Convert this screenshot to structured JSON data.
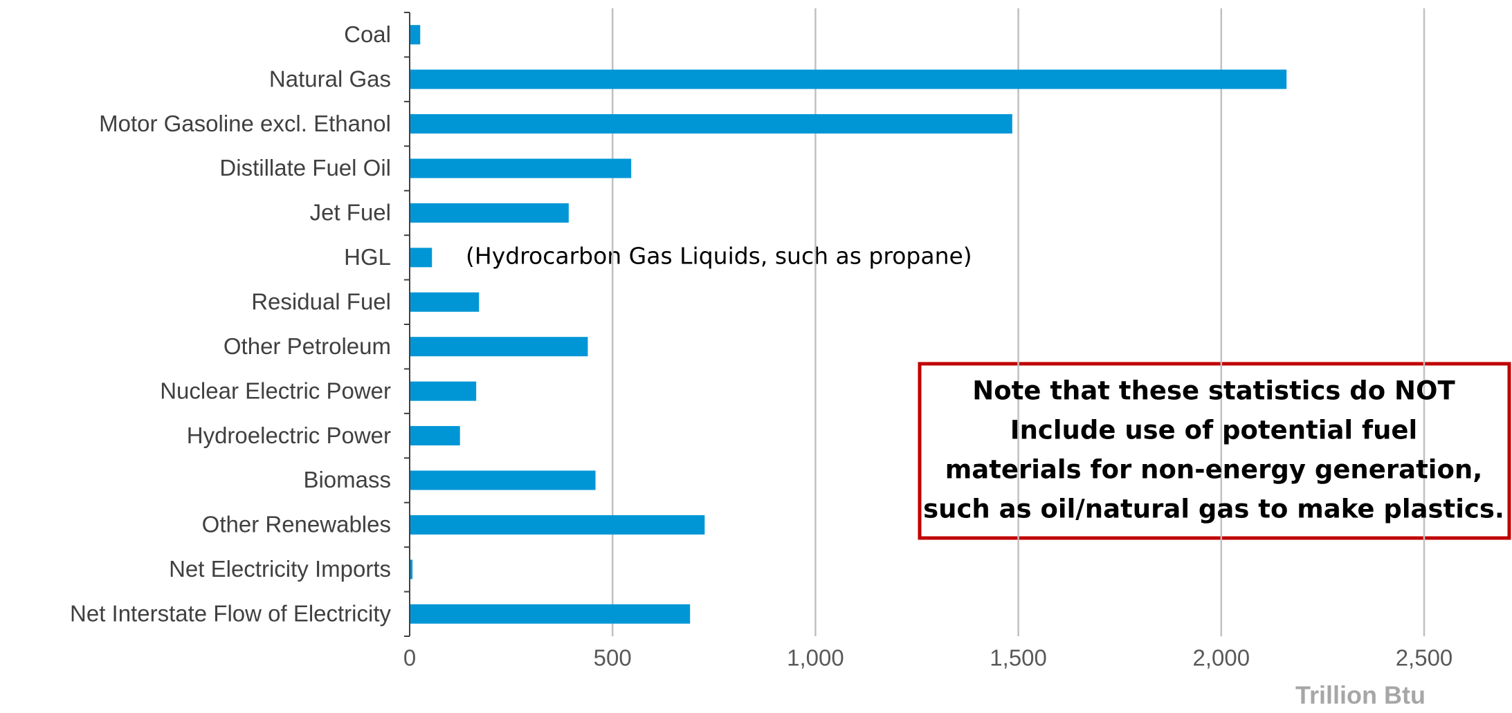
{
  "chart_data": {
    "type": "hbar",
    "categories": [
      "Coal",
      "Natural Gas",
      "Motor Gasoline excl. Ethanol",
      "Distillate Fuel Oil",
      "Jet Fuel",
      "HGL",
      "Residual Fuel",
      "Other Petroleum",
      "Nuclear Electric Power",
      "Hydroelectric Power",
      "Biomass",
      "Other Renewables",
      "Net Electricity Imports",
      "Net Interstate Flow of Electricity"
    ],
    "values": [
      26,
      2161,
      1485,
      546,
      392,
      55,
      171,
      439,
      164,
      124,
      458,
      727,
      7,
      691
    ],
    "color": "#0096d6",
    "xlim": [
      0,
      2700
    ],
    "xticks": [
      0,
      500,
      {
        "value": 1000,
        "label": "1,000"
      },
      {
        "value": 1500,
        "label": "1,500"
      },
      {
        "value": 2000,
        "label": "2,000"
      },
      {
        "value": 2500,
        "label": "2,500"
      }
    ],
    "grid": true,
    "x_label": "Trillion Btu",
    "annotations": [
      "(Hydrocarbon Gas Liquids, such as propane)"
    ],
    "note": [
      "Note that these statistics do NOT",
      "Include use of potential fuel",
      "materials for non-energy generation,",
      "such as oil/natural gas to make plastics."
    ]
  }
}
